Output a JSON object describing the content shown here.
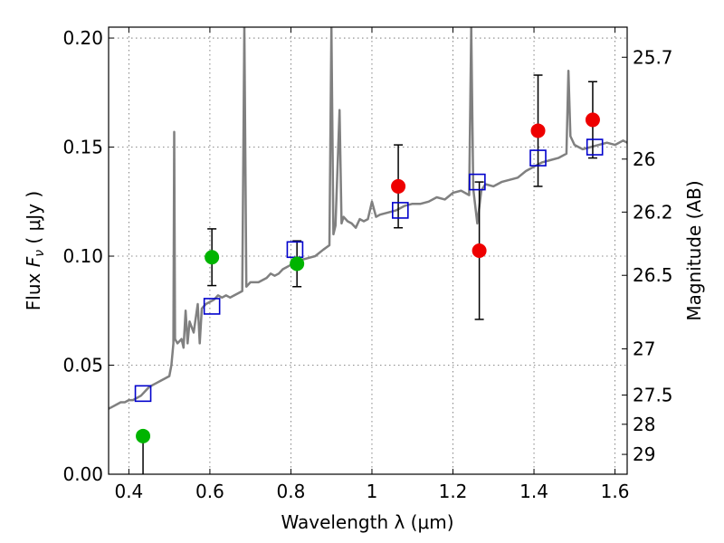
{
  "chart_data": {
    "type": "scatter",
    "xlabel": "Wavelength  λ (μm)",
    "ylabel_prefix": "Flux  ",
    "ylabel_symbol": "F",
    "ylabel_sub": "ν",
    "ylabel_suffix": "  ( μJy )",
    "y2label": "Magnitude (AB)",
    "xlim": [
      0.35,
      1.63
    ],
    "ylim": [
      0.0,
      0.205
    ],
    "grid": true,
    "x_ticks": [
      {
        "value": 0.4,
        "label": "0.4"
      },
      {
        "value": 0.6,
        "label": "0.6"
      },
      {
        "value": 0.8,
        "label": "0.8"
      },
      {
        "value": 1.0,
        "label": "1"
      },
      {
        "value": 1.2,
        "label": "1.2"
      },
      {
        "value": 1.4,
        "label": "1.4"
      },
      {
        "value": 1.6,
        "label": "1.6"
      }
    ],
    "y_ticks": [
      {
        "value": 0.0,
        "label": "0.00"
      },
      {
        "value": 0.05,
        "label": "0.05"
      },
      {
        "value": 0.1,
        "label": "0.10"
      },
      {
        "value": 0.15,
        "label": "0.15"
      },
      {
        "value": 0.2,
        "label": "0.20"
      }
    ],
    "y2_ticks": [
      {
        "flux": 0.1912,
        "label": "25.7"
      },
      {
        "flux": 0.1445,
        "label": "26"
      },
      {
        "flux": 0.1202,
        "label": "26.2"
      },
      {
        "flux": 0.0912,
        "label": "26.5"
      },
      {
        "flux": 0.0575,
        "label": "27"
      },
      {
        "flux": 0.0363,
        "label": "27.5"
      },
      {
        "flux": 0.0229,
        "label": "28"
      },
      {
        "flux": 0.0091,
        "label": "29"
      }
    ],
    "spectrum": {
      "color": "#808080",
      "points": [
        [
          0.35,
          0.03
        ],
        [
          0.36,
          0.031
        ],
        [
          0.37,
          0.032
        ],
        [
          0.38,
          0.033
        ],
        [
          0.39,
          0.033
        ],
        [
          0.4,
          0.034
        ],
        [
          0.41,
          0.034
        ],
        [
          0.42,
          0.035
        ],
        [
          0.43,
          0.036
        ],
        [
          0.44,
          0.038
        ],
        [
          0.45,
          0.04
        ],
        [
          0.46,
          0.041
        ],
        [
          0.47,
          0.042
        ],
        [
          0.48,
          0.043
        ],
        [
          0.49,
          0.044
        ],
        [
          0.5,
          0.045
        ],
        [
          0.505,
          0.05
        ],
        [
          0.51,
          0.06
        ],
        [
          0.512,
          0.157
        ],
        [
          0.514,
          0.062
        ],
        [
          0.52,
          0.06
        ],
        [
          0.53,
          0.062
        ],
        [
          0.535,
          0.058
        ],
        [
          0.54,
          0.075
        ],
        [
          0.545,
          0.06
        ],
        [
          0.55,
          0.07
        ],
        [
          0.56,
          0.065
        ],
        [
          0.57,
          0.078
        ],
        [
          0.575,
          0.06
        ],
        [
          0.58,
          0.076
        ],
        [
          0.59,
          0.078
        ],
        [
          0.6,
          0.079
        ],
        [
          0.61,
          0.08
        ],
        [
          0.62,
          0.082
        ],
        [
          0.63,
          0.081
        ],
        [
          0.64,
          0.082
        ],
        [
          0.65,
          0.081
        ],
        [
          0.66,
          0.082
        ],
        [
          0.67,
          0.083
        ],
        [
          0.68,
          0.084
        ],
        [
          0.685,
          0.205
        ],
        [
          0.69,
          0.086
        ],
        [
          0.7,
          0.088
        ],
        [
          0.72,
          0.088
        ],
        [
          0.74,
          0.09
        ],
        [
          0.75,
          0.092
        ],
        [
          0.76,
          0.091
        ],
        [
          0.77,
          0.092
        ],
        [
          0.78,
          0.094
        ],
        [
          0.8,
          0.096
        ],
        [
          0.82,
          0.098
        ],
        [
          0.84,
          0.099
        ],
        [
          0.86,
          0.1
        ],
        [
          0.88,
          0.103
        ],
        [
          0.895,
          0.105
        ],
        [
          0.9,
          0.205
        ],
        [
          0.905,
          0.11
        ],
        [
          0.91,
          0.114
        ],
        [
          0.92,
          0.167
        ],
        [
          0.925,
          0.115
        ],
        [
          0.93,
          0.118
        ],
        [
          0.94,
          0.116
        ],
        [
          0.95,
          0.115
        ],
        [
          0.96,
          0.113
        ],
        [
          0.97,
          0.117
        ],
        [
          0.98,
          0.116
        ],
        [
          0.99,
          0.117
        ],
        [
          1.0,
          0.125
        ],
        [
          1.01,
          0.118
        ],
        [
          1.02,
          0.119
        ],
        [
          1.04,
          0.12
        ],
        [
          1.06,
          0.121
        ],
        [
          1.08,
          0.123
        ],
        [
          1.1,
          0.124
        ],
        [
          1.12,
          0.124
        ],
        [
          1.14,
          0.125
        ],
        [
          1.16,
          0.127
        ],
        [
          1.18,
          0.126
        ],
        [
          1.2,
          0.129
        ],
        [
          1.22,
          0.13
        ],
        [
          1.24,
          0.128
        ],
        [
          1.245,
          0.205
        ],
        [
          1.25,
          0.131
        ],
        [
          1.26,
          0.115
        ],
        [
          1.27,
          0.13
        ],
        [
          1.28,
          0.133
        ],
        [
          1.3,
          0.132
        ],
        [
          1.32,
          0.134
        ],
        [
          1.34,
          0.135
        ],
        [
          1.36,
          0.136
        ],
        [
          1.38,
          0.139
        ],
        [
          1.4,
          0.141
        ],
        [
          1.42,
          0.143
        ],
        [
          1.44,
          0.144
        ],
        [
          1.46,
          0.145
        ],
        [
          1.48,
          0.147
        ],
        [
          1.485,
          0.185
        ],
        [
          1.49,
          0.155
        ],
        [
          1.5,
          0.151
        ],
        [
          1.52,
          0.149
        ],
        [
          1.54,
          0.15
        ],
        [
          1.56,
          0.151
        ],
        [
          1.58,
          0.152
        ],
        [
          1.6,
          0.151
        ],
        [
          1.62,
          0.153
        ],
        [
          1.63,
          0.152
        ]
      ]
    },
    "model_fluxes": {
      "name": "model",
      "color": "#0000cc",
      "points": [
        [
          0.435,
          0.037
        ],
        [
          0.605,
          0.077
        ],
        [
          0.81,
          0.103
        ],
        [
          1.07,
          0.121
        ],
        [
          1.26,
          0.134
        ],
        [
          1.41,
          0.145
        ],
        [
          1.55,
          0.15
        ]
      ]
    },
    "detections_optical": {
      "color": "#00b400",
      "points": [
        {
          "x": 0.435,
          "y": 0.0175,
          "err_lo": 0.0175,
          "err_hi": 0.0
        },
        {
          "x": 0.605,
          "y": 0.0995,
          "err_lo": 0.013,
          "err_hi": 0.013
        },
        {
          "x": 0.815,
          "y": 0.0965,
          "err_lo": 0.0105,
          "err_hi": 0.0105
        }
      ]
    },
    "detections_nir": {
      "color": "#ee0000",
      "points": [
        {
          "x": 1.065,
          "y": 0.132,
          "err_lo": 0.019,
          "err_hi": 0.019
        },
        {
          "x": 1.265,
          "y": 0.1025,
          "err_lo": 0.0315,
          "err_hi": 0.0315
        },
        {
          "x": 1.41,
          "y": 0.1575,
          "err_lo": 0.0255,
          "err_hi": 0.0255
        },
        {
          "x": 1.545,
          "y": 0.1625,
          "err_lo": 0.0175,
          "err_hi": 0.0175
        }
      ]
    }
  }
}
